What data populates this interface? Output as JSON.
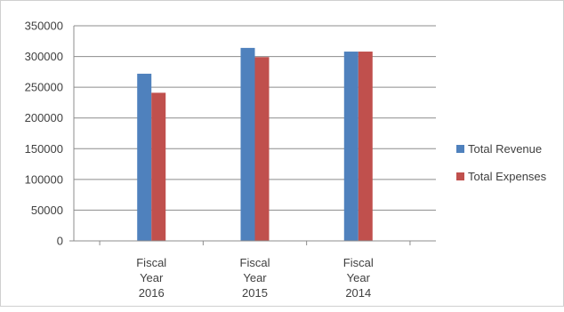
{
  "chart_data": {
    "type": "bar",
    "categories": [
      [
        "Fiscal",
        "Year",
        "2016"
      ],
      [
        "Fiscal",
        "Year",
        "2015"
      ],
      [
        "Fiscal",
        "Year",
        "2014"
      ]
    ],
    "series": [
      {
        "name": "Total Revenue",
        "values": [
          272000,
          314000,
          308000
        ],
        "color": "#4f81bd"
      },
      {
        "name": "Total Expenses",
        "values": [
          241000,
          299000,
          308000
        ],
        "color": "#c0504d"
      }
    ],
    "title": "",
    "xlabel": "",
    "ylabel": "",
    "ylim": [
      0,
      350000
    ],
    "yticks": [
      0,
      50000,
      100000,
      150000,
      200000,
      250000,
      300000,
      350000
    ],
    "grid": true,
    "legend_position": "right"
  }
}
